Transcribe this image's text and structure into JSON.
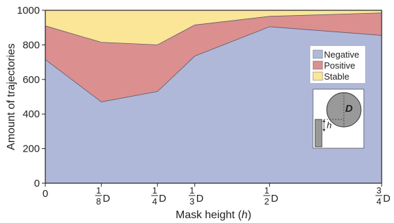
{
  "chart_data": {
    "type": "area",
    "stacked": true,
    "x": [
      0,
      0.125,
      0.25,
      0.3333,
      0.5,
      0.75
    ],
    "x_tick_labels": [
      {
        "value": 0,
        "int": "0",
        "num": "",
        "den": "",
        "unit": ""
      },
      {
        "value": 0.125,
        "int": "",
        "num": "1",
        "den": "8",
        "unit": "D"
      },
      {
        "value": 0.25,
        "int": "",
        "num": "1",
        "den": "4",
        "unit": "D"
      },
      {
        "value": 0.3333,
        "int": "",
        "num": "1",
        "den": "3",
        "unit": "D"
      },
      {
        "value": 0.5,
        "int": "",
        "num": "1",
        "den": "2",
        "unit": "D"
      },
      {
        "value": 0.75,
        "int": "",
        "num": "3",
        "den": "4",
        "unit": "D"
      }
    ],
    "series": [
      {
        "name": "Negative",
        "color": "#b0b8d9",
        "values": [
          715,
          470,
          530,
          735,
          905,
          855
        ]
      },
      {
        "name": "Positive",
        "color": "#dc8f8f",
        "values": [
          195,
          345,
          270,
          180,
          60,
          130
        ]
      },
      {
        "name": "Stable",
        "color": "#fbe597",
        "values": [
          90,
          185,
          200,
          85,
          35,
          15
        ]
      }
    ],
    "xlabel_prefix": "Mask height (",
    "xlabel_var": "h",
    "xlabel_suffix": ")",
    "ylabel": "Amount of trajectories",
    "ylim": [
      0,
      1000
    ],
    "xlim": [
      0,
      0.75
    ],
    "y_ticks": [
      "0",
      "200",
      "400",
      "600",
      "800",
      "1000"
    ],
    "grid": false,
    "legend_position": "right",
    "inset": {
      "circle_label": "D",
      "height_label": "h"
    }
  }
}
